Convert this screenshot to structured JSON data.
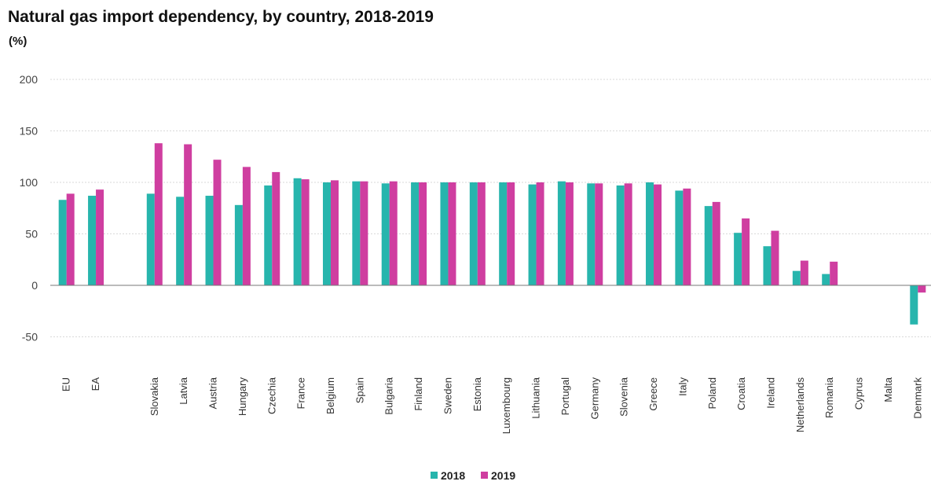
{
  "title": "Natural gas import dependency, by country, 2018-2019",
  "subtitle": "(%)",
  "colors": {
    "s2018": "#27b5ad",
    "s2019": "#cf3ea0",
    "grid": "#d9d9d9",
    "zero": "#777777"
  },
  "chart_data": {
    "type": "bar",
    "title": "Natural gas import dependency, by country, 2018-2019",
    "ylabel": "(%)",
    "ylim": [
      -50,
      200
    ],
    "yticks": [
      200,
      150,
      100,
      50,
      0,
      -50
    ],
    "grid": true,
    "legend_position": "bottom-center",
    "categories": [
      "EU",
      "EA",
      "",
      "Slovakia",
      "Latvia",
      "Austria",
      "Hungary",
      "Czechia",
      "France",
      "Belgium",
      "Spain",
      "Bulgaria",
      "Finland",
      "Sweden",
      "Estonia",
      "Luxembourg",
      "Lithuania",
      "Portugal",
      "Germany",
      "Slovenia",
      "Greece",
      "Italy",
      "Poland",
      "Croatia",
      "Ireland",
      "Netherlands",
      "Romania",
      "Cyprus",
      "Malta",
      "Denmark"
    ],
    "series": [
      {
        "name": "2018",
        "values": [
          83,
          87,
          null,
          89,
          86,
          87,
          78,
          97,
          104,
          100,
          101,
          99,
          100,
          100,
          100,
          100,
          98,
          101,
          99,
          97,
          100,
          92,
          77,
          51,
          38,
          14,
          11,
          0,
          0,
          -38
        ]
      },
      {
        "name": "2019",
        "values": [
          89,
          93,
          null,
          138,
          137,
          122,
          115,
          110,
          103,
          102,
          101,
          101,
          100,
          100,
          100,
          100,
          100,
          100,
          99,
          99,
          98,
          94,
          81,
          65,
          53,
          24,
          23,
          0,
          0,
          -7
        ]
      }
    ]
  }
}
